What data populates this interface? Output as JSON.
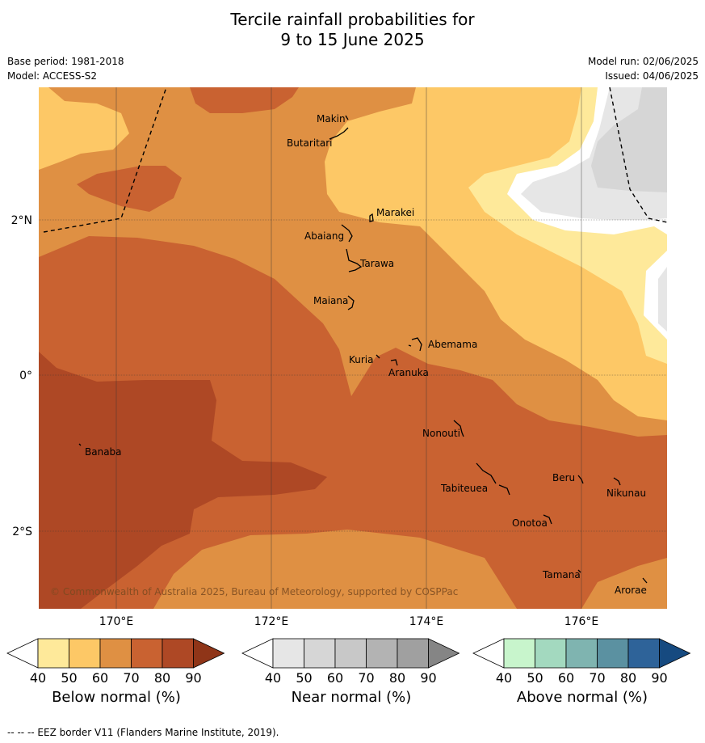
{
  "title_line1": "Tercile rainfall probabilities for",
  "title_line2": "9 to 15 June 2025",
  "base_period": "Base period: 1981-2018",
  "model": "Model: ACCESS-S2",
  "model_run": "Model run: 02/06/2025",
  "issued": "Issued: 04/06/2025",
  "copyright": "© Commonwealth of Australia 2025, Bureau of Meteorology, supported by COSPPac",
  "footnote": "--  --  -- EEZ border V11 (Flanders Marine Institute, 2019).",
  "lat_labels": [
    "2°N",
    "0°",
    "2°S"
  ],
  "lon_labels": [
    "170°E",
    "172°E",
    "174°E",
    "176°E"
  ],
  "places": [
    "Makin",
    "Butaritari",
    "Marakei",
    "Abaiang",
    "Tarawa",
    "Maiana",
    "Abemama",
    "Kuria",
    "Aranuka",
    "Banaba",
    "Nonouti",
    "Tabiteuea",
    "Beru",
    "Nikunau",
    "Onotoa",
    "Tamana",
    "Arorae"
  ],
  "legend": {
    "below": {
      "title": "Below normal (%)",
      "ticks": [
        "40",
        "50",
        "60",
        "70",
        "80",
        "90"
      ],
      "colors": [
        "#ffffff",
        "#fee99a",
        "#fdc866",
        "#df9043",
        "#c96231",
        "#ae4825",
        "#8f3518"
      ]
    },
    "near": {
      "title": "Near normal (%)",
      "ticks": [
        "40",
        "50",
        "60",
        "70",
        "80",
        "90"
      ],
      "colors": [
        "#ffffff",
        "#e6e6e6",
        "#d6d6d6",
        "#c8c8c8",
        "#b3b3b3",
        "#a0a0a0",
        "#858585"
      ]
    },
    "above": {
      "title": "Above normal (%)",
      "ticks": [
        "40",
        "50",
        "60",
        "70",
        "80",
        "90"
      ],
      "colors": [
        "#ffffff",
        "#c8f5cc",
        "#a3d9bf",
        "#7fb4b0",
        "#5b91a1",
        "#2e6399",
        "#164a80"
      ]
    }
  },
  "colors": {
    "c50": "#fee99a",
    "c60": "#fdc866",
    "c70": "#df9043",
    "c80": "#c96231",
    "c90": "#ae4825",
    "near50": "#e6e6e6",
    "near60": "#d6d6d6"
  }
}
